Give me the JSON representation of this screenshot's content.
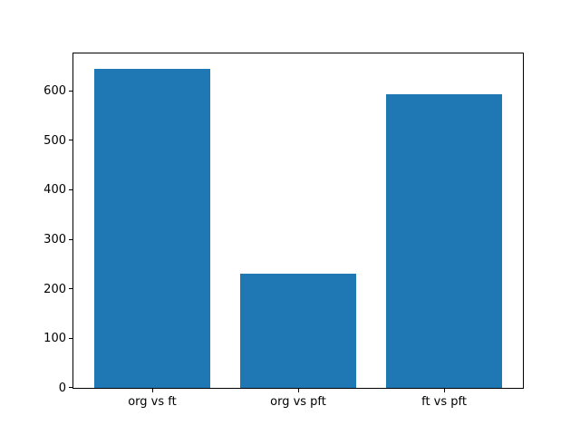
{
  "chart_data": {
    "type": "bar",
    "categories": [
      "org vs ft",
      "org vs pft",
      "ft vs pft"
    ],
    "values": [
      645,
      232,
      595
    ],
    "title": "",
    "xlabel": "",
    "ylabel": "",
    "ylim": [
      0,
      677
    ],
    "yticks": [
      0,
      100,
      200,
      300,
      400,
      500,
      600
    ],
    "bar_color": "#1f77b4",
    "bar_width_fraction": 0.8,
    "x_margin": 0.05,
    "grid": false,
    "legend": null,
    "background_color": "#ffffff",
    "spine_color": "#000000",
    "tick_color": "#000000"
  }
}
